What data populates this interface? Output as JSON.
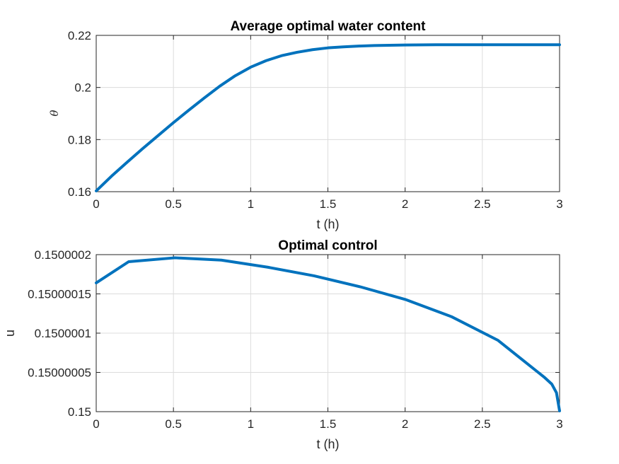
{
  "chart_data": [
    {
      "type": "line",
      "title": "Average optimal water content",
      "xlabel": "t (h)",
      "ylabel": "θ",
      "xlim": [
        0,
        3
      ],
      "ylim": [
        0.16,
        0.22
      ],
      "xticks": [
        0,
        0.5,
        1,
        1.5,
        2,
        2.5,
        3
      ],
      "xtick_labels": [
        "0",
        "0.5",
        "1",
        "1.5",
        "2",
        "2.5",
        "3"
      ],
      "yticks": [
        0.16,
        0.18,
        0.2,
        0.22
      ],
      "ytick_labels": [
        "0.16",
        "0.18",
        "0.2",
        "0.22"
      ],
      "grid": true,
      "series": [
        {
          "name": "theta",
          "color": "#0072BD",
          "x": [
            0,
            0.1,
            0.2,
            0.3,
            0.4,
            0.5,
            0.6,
            0.7,
            0.8,
            0.9,
            1.0,
            1.1,
            1.2,
            1.3,
            1.4,
            1.5,
            1.6,
            1.7,
            1.8,
            1.9,
            2.0,
            2.2,
            2.4,
            2.6,
            2.8,
            3.0
          ],
          "y": [
            0.1603,
            0.166,
            0.1713,
            0.1765,
            0.1815,
            0.1865,
            0.1913,
            0.196,
            0.2005,
            0.2045,
            0.2078,
            0.2103,
            0.2122,
            0.2135,
            0.2145,
            0.2152,
            0.2156,
            0.2159,
            0.2161,
            0.2162,
            0.2163,
            0.2164,
            0.2164,
            0.2164,
            0.2164,
            0.2164
          ]
        }
      ]
    },
    {
      "type": "line",
      "title": "Optimal control",
      "xlabel": "t (h)",
      "ylabel": "u",
      "xlim": [
        0,
        3
      ],
      "ylim": [
        0.15,
        0.1500002
      ],
      "xticks": [
        0,
        0.5,
        1,
        1.5,
        2,
        2.5,
        3
      ],
      "xtick_labels": [
        "0",
        "0.5",
        "1",
        "1.5",
        "2",
        "2.5",
        "3"
      ],
      "yticks": [
        0.15,
        0.15000005,
        0.1500001,
        0.15000015,
        0.1500002
      ],
      "ytick_labels": [
        "0.15",
        "0.15000005",
        "0.1500001",
        "0.15000015",
        "0.1500002"
      ],
      "grid": true,
      "series": [
        {
          "name": "u",
          "color": "#0072BD",
          "x": [
            0,
            0.21,
            0.51,
            0.81,
            1.11,
            1.41,
            1.71,
            2.0,
            2.3,
            2.6,
            2.9,
            2.95,
            2.98,
            3.0
          ],
          "y": [
            0.150000164,
            0.150000191,
            0.150000196,
            0.150000193,
            0.150000184,
            0.150000173,
            0.150000159,
            0.150000143,
            0.150000121,
            0.150000091,
            0.150000044,
            0.150000035,
            0.150000024,
            0.150000001
          ]
        }
      ]
    }
  ]
}
